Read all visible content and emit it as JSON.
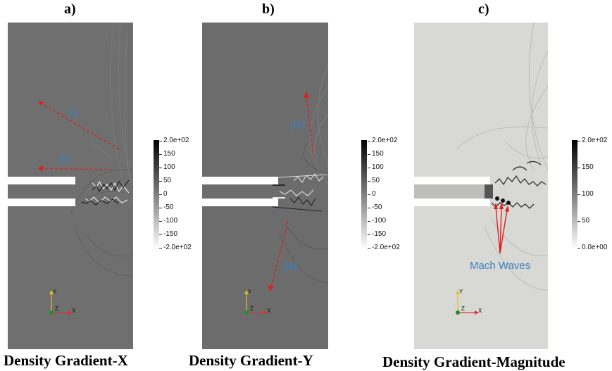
{
  "panels": [
    {
      "letter": "a)",
      "title": "Density Gradient-X",
      "annotations": [
        "(i)",
        "(ii)"
      ],
      "colorbar_ticks": [
        "2.0e+02",
        "150",
        "100",
        "50",
        "0",
        "-50",
        "-100",
        "-150",
        "-2.0e+02"
      ]
    },
    {
      "letter": "b)",
      "title": "Density Gradient-Y",
      "annotations": [
        "(iv)",
        "(iii)"
      ],
      "colorbar_ticks": [
        "2.0e+02",
        "150",
        "100",
        "50",
        "0",
        "-50",
        "-100",
        "-150",
        "-2.0e+02"
      ]
    },
    {
      "letter": "c)",
      "title": "Density Gradient-Magnitude",
      "annotations": [
        "Mach Waves"
      ],
      "colorbar_ticks": [
        "2.0e+02",
        "150",
        "100",
        "50",
        "0.0e+00"
      ]
    }
  ],
  "axes_triad": {
    "x": "X",
    "y": "Y",
    "z": "Z"
  },
  "colors": {
    "field_a": "#6f6f6f",
    "field_b": "#6c6c6c",
    "field_c": "#d8d8d4",
    "arrow_red": "#e02020",
    "annotation_blue": "#3d7fc4",
    "axis_x": "#d33",
    "axis_y": "#e0c020",
    "axis_z": "#2a8a2a"
  }
}
